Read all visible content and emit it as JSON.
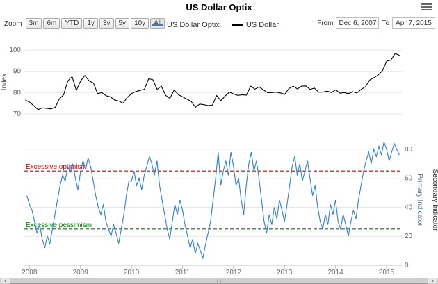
{
  "header": {
    "title": "US Dollar Optix",
    "menu_icon": "hamburger-icon"
  },
  "zoom": {
    "label": "Zoom",
    "buttons": [
      "3m",
      "6m",
      "YTD",
      "1y",
      "3y",
      "5y",
      "10y",
      "All"
    ]
  },
  "range": {
    "from_label": "From",
    "from_value": "Dec 6, 2007",
    "to_label": "To",
    "to_value": "Apr 7, 2015"
  },
  "legend": [
    {
      "label": "US Dollar Optix",
      "color": "#2f7ed8"
    },
    {
      "label": "US Dollar",
      "color": "#000000"
    }
  ],
  "colors": {
    "grid": "#e6e6e6",
    "axis": "#c0c0c0",
    "tick_text": "#666666",
    "optimism": "#cc0000",
    "pessimism": "#008000",
    "primary_axis_title": "#4572a7",
    "secondary_axis_title": "#333333"
  },
  "chart_data": [
    {
      "type": "line",
      "name": "US Dollar price panel",
      "ylabel": "Index",
      "yticks": [
        70,
        80,
        90,
        100
      ],
      "ylim": [
        68,
        102
      ],
      "xlim": [
        2007.9,
        2015.3
      ],
      "grid": true,
      "series": [
        {
          "name": "US Dollar",
          "color": "#000000",
          "x_start": 2007.92,
          "x_step": 0.08333,
          "values": [
            76.5,
            75.5,
            73.8,
            72.0,
            72.8,
            72.6,
            72.3,
            73.0,
            77.0,
            79.0,
            85.5,
            87.5,
            81.0,
            85.5,
            88.0,
            85.5,
            84.5,
            79.5,
            80.0,
            78.5,
            78.0,
            76.5,
            76.0,
            75.0,
            77.8,
            79.5,
            80.5,
            81.0,
            81.5,
            86.5,
            86.0,
            81.5,
            83.0,
            78.7,
            77.3,
            81.2,
            79.0,
            78.0,
            76.9,
            75.9,
            73.1,
            74.6,
            74.3,
            73.9,
            74.1,
            78.6,
            76.2,
            78.4,
            80.2,
            79.3,
            78.7,
            79.0,
            78.8,
            83.0,
            81.6,
            82.7,
            81.2,
            79.9,
            80.0,
            80.2,
            79.8,
            79.2,
            81.9,
            83.0,
            81.7,
            83.0,
            83.1,
            81.5,
            82.1,
            80.2,
            80.2,
            80.7,
            80.0,
            81.3,
            79.7,
            80.0,
            79.5,
            80.4,
            79.8,
            81.5,
            82.7,
            85.9,
            87.0,
            88.3,
            90.3,
            94.8,
            95.3,
            98.4,
            97.5
          ]
        }
      ]
    },
    {
      "type": "line",
      "name": "US Dollar Optix sentiment panel",
      "ylabel_right": "Primary Indicator",
      "secondary_ylabel": "Secondary Indicator",
      "yticks": [
        0,
        20,
        40,
        60,
        80
      ],
      "ylim": [
        0,
        90
      ],
      "xticks": [
        2008,
        2009,
        2010,
        2011,
        2012,
        2013,
        2014,
        2015
      ],
      "grid": true,
      "plotlines": [
        {
          "value": 65,
          "label": "Excessive optimism",
          "color": "#cc0000",
          "dash": "dashed"
        },
        {
          "value": 25,
          "label": "Excessive pessimism",
          "color": "#008000",
          "dash": "dashed"
        }
      ],
      "series": [
        {
          "name": "US Dollar Optix",
          "color": "#2f7ed8",
          "x_start": 2007.95,
          "x_step": 0.05,
          "values": [
            48,
            42,
            38,
            30,
            22,
            28,
            18,
            12,
            20,
            15,
            25,
            35,
            45,
            55,
            62,
            58,
            68,
            64,
            70,
            60,
            52,
            64,
            72,
            66,
            74,
            68,
            58,
            48,
            40,
            35,
            42,
            30,
            25,
            20,
            28,
            22,
            15,
            25,
            35,
            48,
            58,
            58,
            65,
            55,
            60,
            52,
            62,
            68,
            75,
            70,
            62,
            72,
            55,
            45,
            35,
            25,
            18,
            30,
            42,
            35,
            45,
            38,
            28,
            20,
            12,
            18,
            8,
            15,
            10,
            5,
            14,
            22,
            30,
            45,
            60,
            78,
            55,
            65,
            72,
            62,
            78,
            68,
            55,
            60,
            45,
            35,
            55,
            70,
            78,
            65,
            72,
            60,
            45,
            30,
            22,
            35,
            28,
            40,
            32,
            45,
            38,
            30,
            42,
            55,
            68,
            75,
            62,
            70,
            58,
            65,
            72,
            60,
            48,
            55,
            40,
            30,
            25,
            35,
            28,
            42,
            35,
            45,
            30,
            25,
            35,
            28,
            20,
            30,
            38,
            32,
            45,
            55,
            65,
            72,
            78,
            70,
            80,
            75,
            82,
            76,
            85,
            80,
            72,
            78,
            84,
            80,
            76
          ]
        }
      ]
    }
  ]
}
